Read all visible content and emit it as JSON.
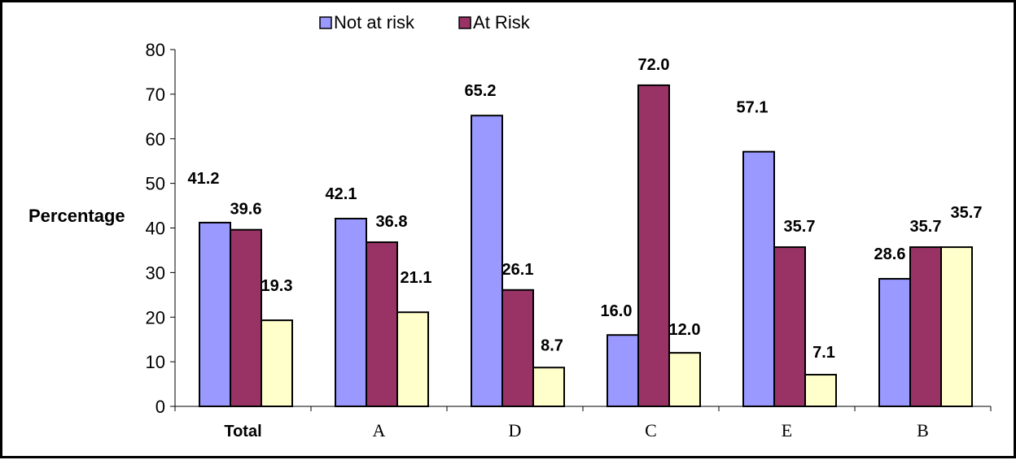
{
  "chart_data": {
    "type": "bar",
    "title": "",
    "xlabel": "",
    "ylabel": "Percentage",
    "ylim": [
      0,
      80
    ],
    "yticks": [
      "0",
      "10",
      "20",
      "30",
      "40",
      "50",
      "60",
      "70",
      "80"
    ],
    "grid": false,
    "legend_position": "top",
    "categories": [
      "Total",
      "A",
      "D",
      "C",
      "E",
      "B"
    ],
    "series": [
      {
        "name": "Not at risk",
        "color": "#9999ff",
        "values": [
          41.2,
          42.1,
          65.2,
          16.0,
          57.1,
          28.6
        ],
        "labels": [
          "41.2",
          "42.1",
          "65.2",
          "16.0",
          "57.1",
          "28.6"
        ]
      },
      {
        "name": "At Risk",
        "color": "#993366",
        "values": [
          39.6,
          36.8,
          26.1,
          72.0,
          35.7,
          35.7
        ],
        "labels": [
          "39.6",
          "36.8",
          "26.1",
          "72.0",
          "35.7",
          "35.7"
        ]
      },
      {
        "name": "",
        "color": "#ffffcc",
        "values": [
          19.3,
          21.1,
          8.7,
          12.0,
          7.1,
          35.7
        ],
        "labels": [
          "19.3",
          "21.1",
          "8.7",
          "12.0",
          "7.1",
          "35.7"
        ]
      }
    ]
  }
}
